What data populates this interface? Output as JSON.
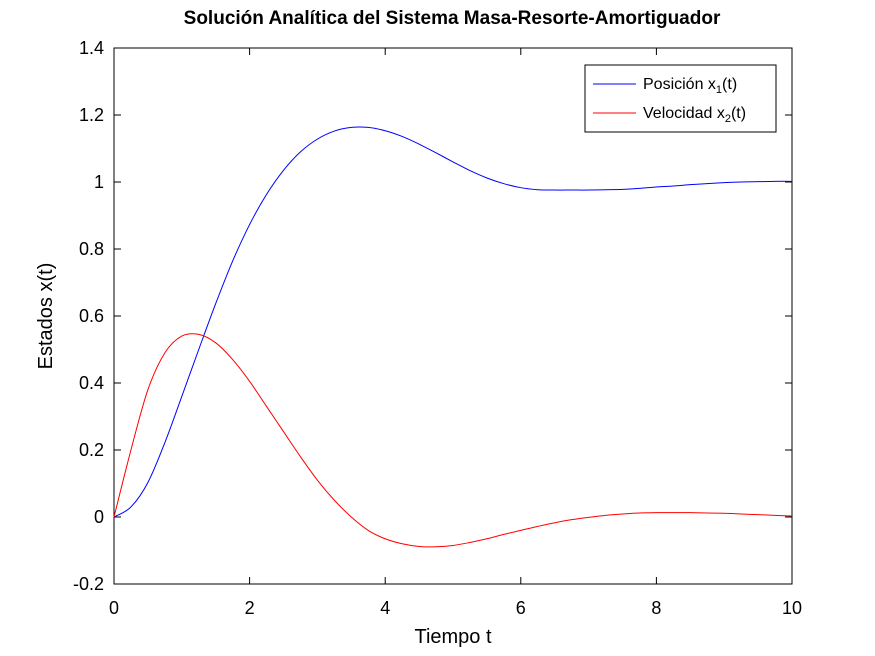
{
  "chart_data": {
    "type": "line",
    "title": "Solución Analítica del Sistema Masa-Resorte-Amortiguador",
    "xlabel": "Tiempo t",
    "ylabel": "Estados x(t)",
    "xlim": [
      0,
      10
    ],
    "ylim": [
      -0.2,
      1.4
    ],
    "xticks": [
      0,
      2,
      4,
      6,
      8,
      10
    ],
    "xtick_labels": [
      "0",
      "2",
      "4",
      "6",
      "8",
      "10"
    ],
    "yticks": [
      -0.2,
      0,
      0.2,
      0.4,
      0.6,
      0.8,
      1,
      1.2,
      1.4
    ],
    "ytick_labels": [
      "-0.2",
      "0",
      "0.2",
      "0.4",
      "0.6",
      "0.8",
      "1",
      "1.2",
      "1.4"
    ],
    "grid": false,
    "legend_position": "top-right",
    "series": [
      {
        "name": "Posición x",
        "subscript": "1",
        "suffix": "(t)",
        "color": "#0000ff",
        "x": [
          0,
          0.25,
          0.5,
          0.75,
          1,
          1.25,
          1.5,
          1.75,
          2,
          2.25,
          2.5,
          2.75,
          3,
          3.25,
          3.5,
          3.75,
          4,
          4.25,
          4.5,
          4.75,
          5,
          5.25,
          5.5,
          5.75,
          6,
          6.25,
          6.5,
          6.75,
          7,
          7.25,
          7.5,
          7.75,
          8,
          8.25,
          8.5,
          8.75,
          9,
          9.25,
          9.5,
          9.75,
          10
        ],
        "y": [
          0,
          0.03,
          0.103,
          0.222,
          0.36,
          0.5,
          0.637,
          0.764,
          0.873,
          0.963,
          1.035,
          1.09,
          1.128,
          1.152,
          1.163,
          1.163,
          1.153,
          1.136,
          1.113,
          1.087,
          1.06,
          1.034,
          1.012,
          0.995,
          0.983,
          0.977,
          0.976,
          0.976,
          0.976,
          0.977,
          0.978,
          0.981,
          0.985,
          0.988,
          0.992,
          0.995,
          0.998,
          1.0,
          1.001,
          1.002,
          1.002
        ]
      },
      {
        "name": "Velocidad x",
        "subscript": "2",
        "suffix": "(t)",
        "color": "#ff0000",
        "x": [
          0,
          0.25,
          0.5,
          0.75,
          1,
          1.25,
          1.5,
          1.75,
          2,
          2.25,
          2.5,
          2.75,
          3,
          3.25,
          3.5,
          3.75,
          4,
          4.25,
          4.5,
          4.75,
          5,
          5.25,
          5.5,
          5.75,
          6,
          6.25,
          6.5,
          6.75,
          7,
          7.25,
          7.5,
          7.75,
          8,
          8.25,
          8.5,
          8.75,
          9,
          9.25,
          9.5,
          9.75,
          10
        ],
        "y": [
          0,
          0.2,
          0.38,
          0.49,
          0.54,
          0.545,
          0.52,
          0.47,
          0.405,
          0.33,
          0.255,
          0.18,
          0.11,
          0.05,
          0.0,
          -0.04,
          -0.065,
          -0.08,
          -0.088,
          -0.089,
          -0.085,
          -0.076,
          -0.065,
          -0.052,
          -0.04,
          -0.028,
          -0.017,
          -0.008,
          -0.001,
          0.005,
          0.009,
          0.012,
          0.013,
          0.013,
          0.013,
          0.012,
          0.011,
          0.009,
          0.007,
          0.005,
          0.003
        ]
      }
    ]
  }
}
